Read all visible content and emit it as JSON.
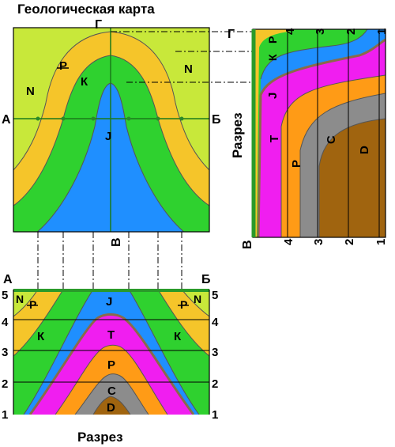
{
  "title": "Геологическая карта",
  "map": {
    "label_A": "А",
    "label_B_right": "Б",
    "label_G_top": "Г",
    "label_V_bottom": "В",
    "units": {
      "N_left": "N",
      "N_right": "N",
      "P_ring": "Р",
      "K_ring": "К",
      "J_core": "J"
    }
  },
  "section_vertical": {
    "title": "Разрез",
    "label_G": "Г",
    "label_V": "В",
    "top_scale": [
      "4",
      "3",
      "2",
      "1"
    ],
    "bottom_scale": [
      "4",
      "3",
      "2",
      "1"
    ],
    "units": {
      "P_top": "Р",
      "K": "К",
      "J": "J",
      "T": "Т",
      "P": "Р",
      "C": "С",
      "D": "D"
    }
  },
  "section_horizontal": {
    "title": "Разрез",
    "label_A": "А",
    "label_B": "Б",
    "left_scale": [
      "5",
      "4",
      "3",
      "2",
      "1"
    ],
    "right_scale": [
      "5",
      "4",
      "3",
      "2",
      "1"
    ],
    "units": {
      "N_left": "N",
      "P_left": "Р",
      "P_right": "Р",
      "N_right": "N",
      "J": "J",
      "K_left": "К",
      "K_right": "К",
      "T": "Т",
      "P": "Р",
      "C": "С",
      "D": "D"
    }
  },
  "colors": {
    "N": "#c8e83a",
    "P_top": "#f5c52a",
    "K": "#2fd12f",
    "J": "#1f8fff",
    "T": "#f01ef0",
    "P": "#ff9b16",
    "C": "#8c8c8c",
    "D": "#a0640f",
    "unconformity": "#8a6a4a",
    "section_line": "#2a9a2a"
  }
}
